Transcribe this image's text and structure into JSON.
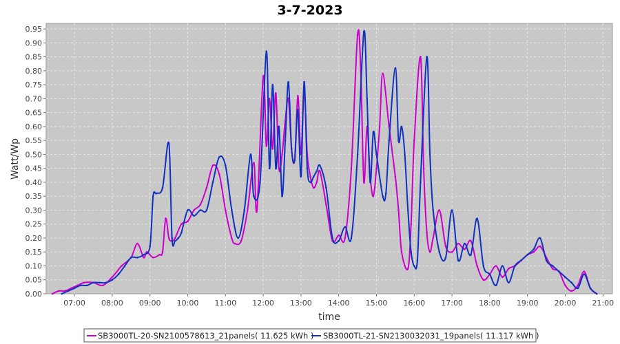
{
  "chart_data": {
    "type": "line",
    "title": "3-7-2023",
    "xlabel": "time",
    "ylabel": "Watt/Wp",
    "xlim": [
      "06:15",
      "21:15"
    ],
    "ylim": [
      0,
      0.97
    ],
    "x_ticks": [
      "07:00",
      "08:00",
      "09:00",
      "10:00",
      "11:00",
      "12:00",
      "13:00",
      "14:00",
      "15:00",
      "16:00",
      "17:00",
      "18:00",
      "19:00",
      "20:00",
      "21:00"
    ],
    "y_ticks": [
      "0.00",
      "0.05",
      "0.10",
      "0.15",
      "0.20",
      "0.25",
      "0.30",
      "0.35",
      "0.40",
      "0.45",
      "0.50",
      "0.55",
      "0.60",
      "0.65",
      "0.70",
      "0.75",
      "0.80",
      "0.85",
      "0.90",
      "0.95"
    ],
    "grid": true,
    "legend_position": "bottom",
    "colors": {
      "plot_background": "#c8c8c8",
      "grid": "#e6e6e6"
    },
    "series": [
      {
        "name": "SB3000TL-20-SN2100578613_21panels( 11.625 kWh )",
        "color": "#cc00cc",
        "x": [
          "06:25",
          "06:35",
          "06:45",
          "06:55",
          "07:05",
          "07:15",
          "07:30",
          "07:45",
          "08:00",
          "08:15",
          "08:30",
          "08:40",
          "08:50",
          "08:55",
          "09:05",
          "09:15",
          "09:20",
          "09:25",
          "09:30",
          "09:35",
          "09:40",
          "09:50",
          "10:00",
          "10:10",
          "10:20",
          "10:30",
          "10:40",
          "10:50",
          "11:00",
          "11:10",
          "11:15",
          "11:25",
          "11:35",
          "11:45",
          "11:50",
          "12:00",
          "12:05",
          "12:10",
          "12:15",
          "12:20",
          "12:25",
          "12:30",
          "12:35",
          "12:40",
          "12:45",
          "12:50",
          "12:55",
          "13:00",
          "13:05",
          "13:10",
          "13:15",
          "13:20",
          "13:25",
          "13:30",
          "13:40",
          "13:50",
          "14:00",
          "14:10",
          "14:20",
          "14:30",
          "14:35",
          "14:40",
          "14:45",
          "14:50",
          "14:55",
          "15:00",
          "15:05",
          "15:10",
          "15:20",
          "15:30",
          "15:35",
          "15:40",
          "15:50",
          "15:55",
          "16:00",
          "16:10",
          "16:15",
          "16:20",
          "16:25",
          "16:30",
          "16:40",
          "16:50",
          "17:00",
          "17:10",
          "17:20",
          "17:30",
          "17:40",
          "17:50",
          "18:00",
          "18:10",
          "18:20",
          "18:30",
          "18:40",
          "18:50",
          "19:00",
          "19:10",
          "19:20",
          "19:30",
          "19:40",
          "19:50",
          "20:00",
          "20:10",
          "20:20",
          "20:30",
          "20:40",
          "20:50"
        ],
        "values": [
          0.0,
          0.01,
          0.01,
          0.02,
          0.03,
          0.04,
          0.04,
          0.03,
          0.06,
          0.1,
          0.13,
          0.18,
          0.13,
          0.15,
          0.13,
          0.14,
          0.15,
          0.27,
          0.2,
          0.19,
          0.2,
          0.25,
          0.26,
          0.3,
          0.32,
          0.38,
          0.46,
          0.43,
          0.3,
          0.2,
          0.18,
          0.19,
          0.3,
          0.47,
          0.3,
          0.78,
          0.53,
          0.7,
          0.52,
          0.72,
          0.45,
          0.5,
          0.62,
          0.7,
          0.52,
          0.48,
          0.71,
          0.5,
          0.73,
          0.5,
          0.42,
          0.38,
          0.4,
          0.44,
          0.32,
          0.19,
          0.21,
          0.2,
          0.45,
          0.93,
          0.8,
          0.4,
          0.6,
          0.42,
          0.35,
          0.45,
          0.6,
          0.79,
          0.6,
          0.42,
          0.3,
          0.15,
          0.09,
          0.25,
          0.55,
          0.85,
          0.45,
          0.22,
          0.15,
          0.2,
          0.3,
          0.17,
          0.15,
          0.18,
          0.16,
          0.19,
          0.1,
          0.05,
          0.07,
          0.1,
          0.06,
          0.09,
          0.1,
          0.12,
          0.14,
          0.15,
          0.17,
          0.13,
          0.09,
          0.08,
          0.03,
          0.01,
          0.03,
          0.08,
          0.02,
          0.0
        ]
      },
      {
        "name": "SB3000TL-21-SN2130032031_19panels( 11.117 kWh )",
        "color": "#1030c0",
        "x": [
          "06:40",
          "06:50",
          "07:00",
          "07:10",
          "07:20",
          "07:30",
          "07:40",
          "07:50",
          "08:00",
          "08:10",
          "08:20",
          "08:30",
          "08:40",
          "08:50",
          "09:00",
          "09:05",
          "09:10",
          "09:20",
          "09:30",
          "09:35",
          "09:40",
          "09:45",
          "09:50",
          "10:00",
          "10:10",
          "10:20",
          "10:30",
          "10:40",
          "10:50",
          "11:00",
          "11:10",
          "11:20",
          "11:30",
          "11:40",
          "11:45",
          "11:55",
          "12:05",
          "12:10",
          "12:15",
          "12:20",
          "12:25",
          "12:30",
          "12:35",
          "12:40",
          "12:45",
          "12:50",
          "12:55",
          "13:00",
          "13:05",
          "13:10",
          "13:15",
          "13:20",
          "13:25",
          "13:30",
          "13:40",
          "13:50",
          "14:00",
          "14:10",
          "14:20",
          "14:30",
          "14:40",
          "14:45",
          "14:50",
          "14:55",
          "15:00",
          "15:10",
          "15:15",
          "15:20",
          "15:30",
          "15:35",
          "15:40",
          "15:45",
          "15:50",
          "15:55",
          "16:00",
          "16:05",
          "16:10",
          "16:20",
          "16:25",
          "16:30",
          "16:40",
          "16:50",
          "17:00",
          "17:10",
          "17:20",
          "17:30",
          "17:40",
          "17:50",
          "18:00",
          "18:10",
          "18:20",
          "18:30",
          "18:40",
          "18:50",
          "19:00",
          "19:10",
          "19:20",
          "19:30",
          "19:40",
          "19:50",
          "20:00",
          "20:10",
          "20:20",
          "20:30",
          "20:40",
          "20:50"
        ],
        "values": [
          0.0,
          0.01,
          0.02,
          0.03,
          0.03,
          0.04,
          0.04,
          0.04,
          0.05,
          0.07,
          0.1,
          0.13,
          0.13,
          0.14,
          0.17,
          0.35,
          0.36,
          0.38,
          0.54,
          0.2,
          0.19,
          0.2,
          0.22,
          0.3,
          0.28,
          0.3,
          0.3,
          0.4,
          0.49,
          0.46,
          0.3,
          0.2,
          0.3,
          0.5,
          0.35,
          0.4,
          0.87,
          0.45,
          0.75,
          0.45,
          0.6,
          0.35,
          0.55,
          0.76,
          0.52,
          0.48,
          0.66,
          0.42,
          0.76,
          0.45,
          0.4,
          0.42,
          0.44,
          0.46,
          0.38,
          0.2,
          0.19,
          0.24,
          0.2,
          0.5,
          0.94,
          0.7,
          0.4,
          0.58,
          0.5,
          0.35,
          0.36,
          0.55,
          0.81,
          0.55,
          0.6,
          0.5,
          0.3,
          0.15,
          0.1,
          0.12,
          0.4,
          0.85,
          0.5,
          0.3,
          0.15,
          0.13,
          0.3,
          0.12,
          0.18,
          0.14,
          0.27,
          0.1,
          0.07,
          0.03,
          0.1,
          0.04,
          0.1,
          0.12,
          0.14,
          0.16,
          0.2,
          0.12,
          0.1,
          0.08,
          0.06,
          0.04,
          0.02,
          0.07,
          0.02,
          0.0
        ]
      }
    ]
  }
}
